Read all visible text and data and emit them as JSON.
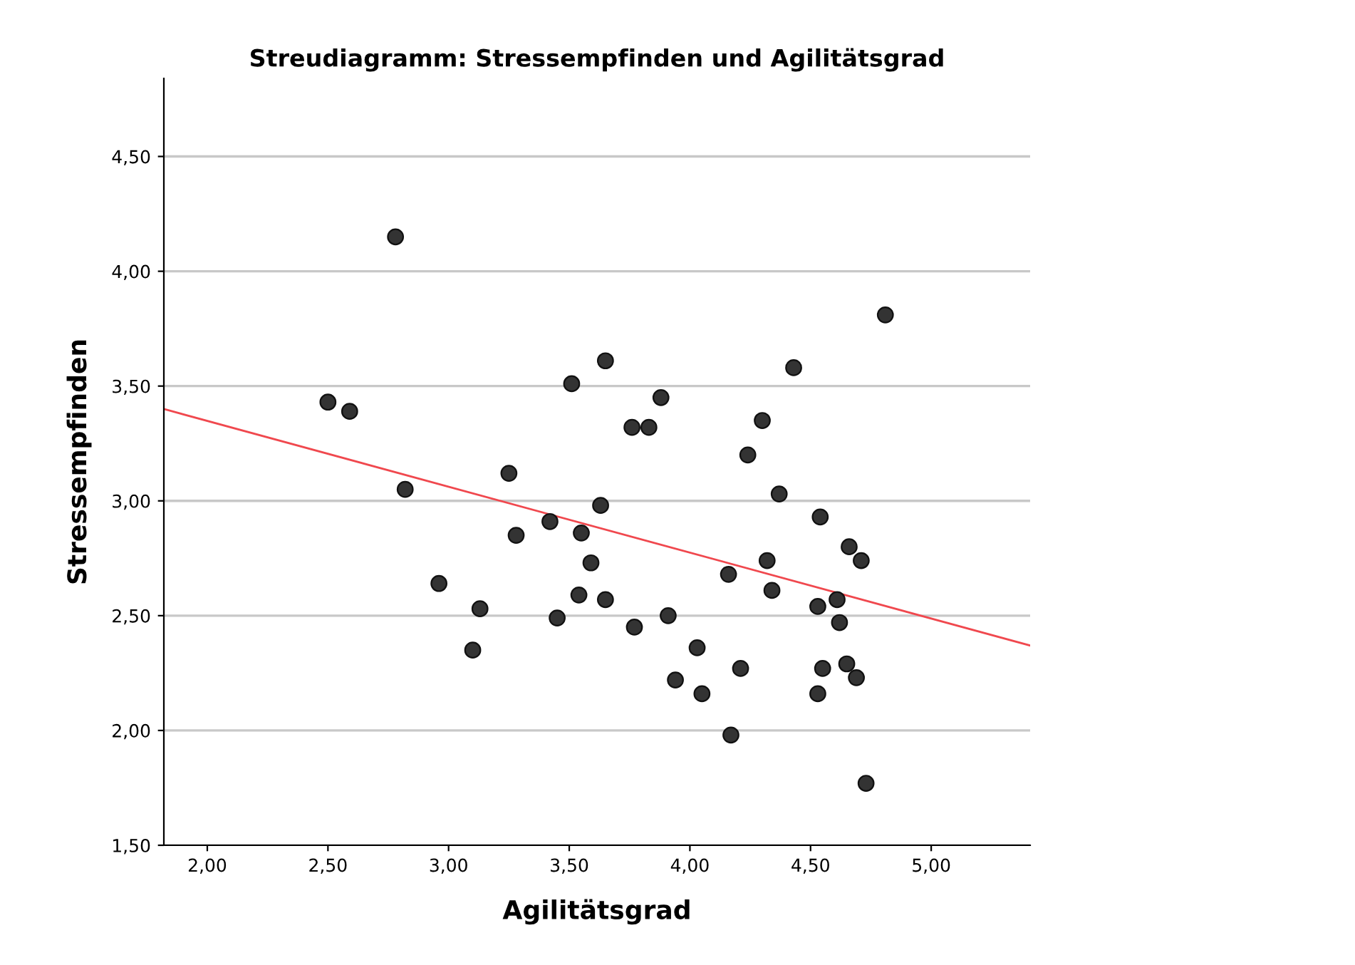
{
  "chart_data": {
    "type": "scatter",
    "title": "Streudiagramm: Stressempfinden und Agilitätsgrad",
    "xlabel": "Agilitätsgrad",
    "ylabel": "Stressempfinden",
    "xlim": [
      1.82,
      5.41
    ],
    "ylim": [
      1.5,
      4.84
    ],
    "xticks": [
      {
        "value": 2,
        "label": "2,00"
      },
      {
        "value": 2.5,
        "label": "2,50"
      },
      {
        "value": 3,
        "label": "3,00"
      },
      {
        "value": 3.5,
        "label": "3,50"
      },
      {
        "value": 4,
        "label": "4,00"
      },
      {
        "value": 4.5,
        "label": "4,50"
      },
      {
        "value": 5,
        "label": "5,00"
      }
    ],
    "yticks": [
      {
        "value": 1.5,
        "label": "1,50"
      },
      {
        "value": 2,
        "label": "2,00"
      },
      {
        "value": 2.5,
        "label": "2,50"
      },
      {
        "value": 3,
        "label": "3,00"
      },
      {
        "value": 3.5,
        "label": "3,50"
      },
      {
        "value": 4,
        "label": "4,00"
      },
      {
        "value": 4.5,
        "label": "4,50"
      }
    ],
    "grid": "y",
    "series": [
      {
        "color": "#333333",
        "marker": "circle",
        "x": [
          2.5,
          2.59,
          2.78,
          2.82,
          2.96,
          3.1,
          3.13,
          3.25,
          3.28,
          3.42,
          3.45,
          3.51,
          3.54,
          3.55,
          3.59,
          3.63,
          3.65,
          3.65,
          3.76,
          3.77,
          3.83,
          3.88,
          3.91,
          3.94,
          4.03,
          4.05,
          4.16,
          4.17,
          4.21,
          4.24,
          4.3,
          4.32,
          4.34,
          4.37,
          4.43,
          4.53,
          4.53,
          4.54,
          4.55,
          4.61,
          4.62,
          4.65,
          4.66,
          4.69,
          4.71,
          4.73,
          4.81
        ],
        "values": [
          3.43,
          3.39,
          4.15,
          3.05,
          2.64,
          2.35,
          2.53,
          3.12,
          2.85,
          2.91,
          2.49,
          3.51,
          2.59,
          2.86,
          2.73,
          2.98,
          3.61,
          2.57,
          3.32,
          2.45,
          3.32,
          3.45,
          2.5,
          2.22,
          2.36,
          2.16,
          2.68,
          1.98,
          2.27,
          3.2,
          3.35,
          2.74,
          2.61,
          3.03,
          3.58,
          2.54,
          2.16,
          2.93,
          2.27,
          2.57,
          2.47,
          2.29,
          2.8,
          2.23,
          2.74,
          1.77,
          3.81
        ]
      },
      {
        "type": "line",
        "marker": "none",
        "color": "#f0484e",
        "line_style": "solid",
        "x": [
          1.82,
          5.41
        ],
        "values": [
          3.4,
          2.37
        ]
      }
    ]
  }
}
